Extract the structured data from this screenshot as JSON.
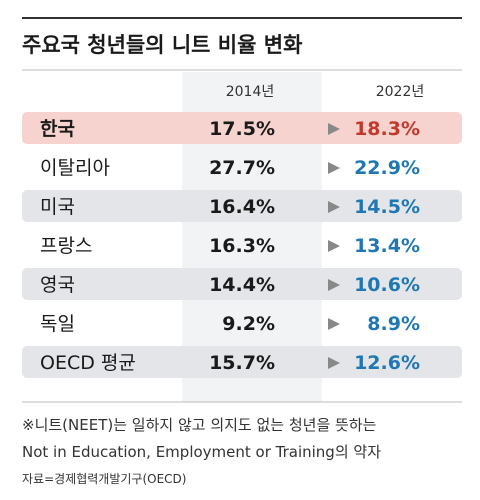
{
  "chart_data": {
    "type": "table",
    "title": "주요국 청년들의 니트 비율 변화",
    "columns": [
      "2014년",
      "2022년"
    ],
    "highlight_color": "#f6d3cf",
    "stripe_color": "#e3e5e8",
    "highlight_value_color": "#c0392b",
    "new_value_color": "#1f77b4",
    "rows": [
      {
        "country": "한국",
        "v2014": "17.5%",
        "v2022": "18.3%",
        "highlight": true
      },
      {
        "country": "이탈리아",
        "v2014": "27.7%",
        "v2022": "22.9%",
        "highlight": false
      },
      {
        "country": "미국",
        "v2014": "16.4%",
        "v2022": "14.5%",
        "highlight": false
      },
      {
        "country": "프랑스",
        "v2014": "16.3%",
        "v2022": "13.4%",
        "highlight": false
      },
      {
        "country": "영국",
        "v2014": "14.4%",
        "v2022": "10.6%",
        "highlight": false
      },
      {
        "country": "독일",
        "v2014": "9.2%",
        "v2022": "8.9%",
        "highlight": false
      },
      {
        "country": "OECD 평균",
        "v2014": "15.7%",
        "v2022": "12.6%",
        "highlight": false
      }
    ]
  },
  "footnote": {
    "line1": "※니트(NEET)는 일하지 않고 의지도 없는 청년을 뜻하는",
    "line2": "Not in Education, Employment or Training의 약자",
    "source": "자료=경제협력개발기구(OECD)"
  }
}
